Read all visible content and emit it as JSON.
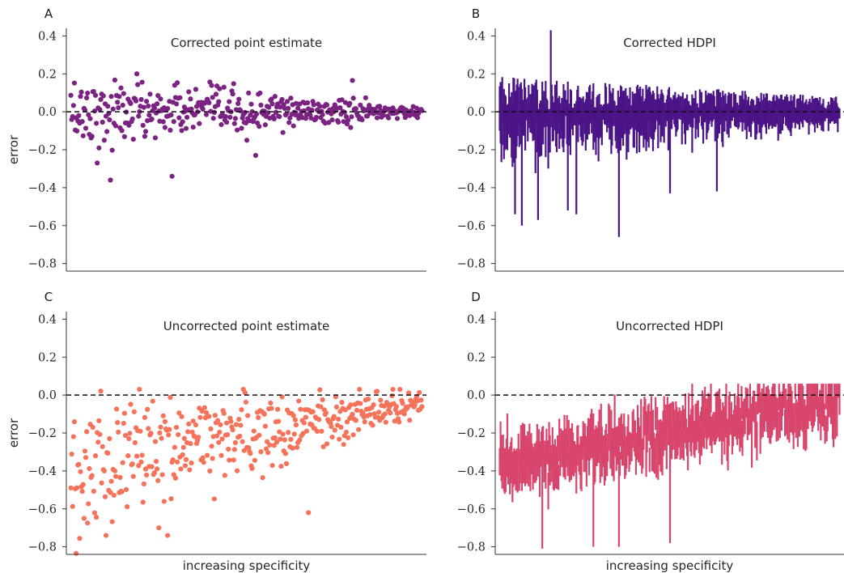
{
  "chart_data": [
    {
      "panel": "A",
      "type": "scatter",
      "title": "Corrected point estimate",
      "ylabel": "error",
      "xlabel": "",
      "ylim": [
        -0.84,
        0.44
      ],
      "yticks": [
        0.4,
        0.2,
        0.0,
        -0.2,
        -0.4,
        -0.6,
        -0.8
      ],
      "ytick_labels": [
        "0.4",
        "0.2",
        "0.0",
        "−0.2",
        "−0.4",
        "−0.6",
        "−0.8"
      ],
      "reference_line": 0.0,
      "color": "#7b2382",
      "n_points": 400,
      "spread_start": 0.09,
      "spread_end": 0.015,
      "bias_start": 0.0,
      "bias_end": 0.0,
      "outliers": [
        [
          30,
          -0.27
        ],
        [
          45,
          -0.36
        ],
        [
          115,
          -0.34
        ],
        [
          210,
          -0.23
        ],
        [
          200,
          -0.15
        ],
        [
          75,
          0.2
        ],
        [
          320,
          0.165
        ],
        [
          118,
          0.14
        ]
      ]
    },
    {
      "panel": "B",
      "type": "errorbar",
      "title": "Corrected HDPI",
      "ylabel": "",
      "xlabel": "",
      "ylim": [
        -0.84,
        0.44
      ],
      "yticks": [
        0.4,
        0.2,
        0.0,
        -0.2,
        -0.4,
        -0.6,
        -0.8
      ],
      "ytick_labels": [
        "0.4",
        "0.2",
        "0.0",
        "−0.2",
        "−0.4",
        "−0.6",
        "−0.8"
      ],
      "reference_line": 0.0,
      "color": "#4a1486",
      "n_intervals": 400,
      "upper_start": 0.18,
      "upper_end": 0.07,
      "lower_start": -0.3,
      "lower_end": -0.08,
      "extremes": [
        [
          18,
          -0.54
        ],
        [
          26,
          -0.6
        ],
        [
          45,
          -0.57
        ],
        [
          60,
          0.43
        ],
        [
          80,
          -0.52
        ],
        [
          90,
          -0.54
        ],
        [
          140,
          -0.66
        ],
        [
          200,
          -0.43
        ],
        [
          255,
          -0.42
        ]
      ]
    },
    {
      "panel": "C",
      "type": "scatter",
      "title": "Uncorrected point estimate",
      "ylabel": "error",
      "xlabel": "increasing specificity",
      "ylim": [
        -0.84,
        0.44
      ],
      "yticks": [
        0.4,
        0.2,
        0.0,
        -0.2,
        -0.4,
        -0.6,
        -0.8
      ],
      "ytick_labels": [
        "0.4",
        "0.2",
        "0.0",
        "−0.2",
        "−0.4",
        "−0.6",
        "−0.8"
      ],
      "reference_line": 0.0,
      "color": "#f4735a",
      "n_points": 400,
      "spread_start": 0.17,
      "spread_end": 0.04,
      "bias_start": -0.37,
      "bias_end": -0.04,
      "outliers": [
        [
          40,
          -0.74
        ],
        [
          110,
          -0.74
        ],
        [
          100,
          -0.7
        ],
        [
          15,
          -0.65
        ],
        [
          270,
          -0.62
        ]
      ]
    },
    {
      "panel": "D",
      "type": "errorbar",
      "title": "Uncorrected HDPI",
      "ylabel": "",
      "xlabel": "increasing specificity",
      "ylim": [
        -0.84,
        0.44
      ],
      "yticks": [
        0.4,
        0.2,
        0.0,
        -0.2,
        -0.4,
        -0.6,
        -0.8
      ],
      "ytick_labels": [
        "0.4",
        "0.2",
        "0.0",
        "−0.2",
        "−0.4",
        "−0.6",
        "−0.8"
      ],
      "reference_line": 0.0,
      "color": "#d8456c",
      "n_intervals": 400,
      "center_start": -0.37,
      "center_end": -0.03,
      "halfwidth": 0.1,
      "extremes": [
        [
          50,
          -0.81
        ],
        [
          110,
          -0.8
        ],
        [
          140,
          -0.8
        ],
        [
          200,
          -0.78
        ]
      ]
    }
  ]
}
